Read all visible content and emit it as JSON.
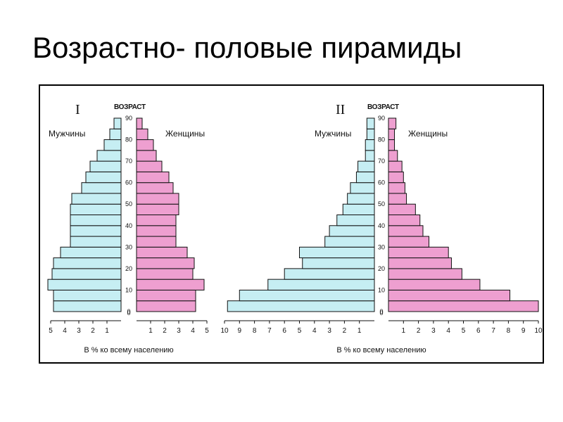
{
  "slide": {
    "title": "Возрастно- половые пирамиды"
  },
  "colors": {
    "male": "#c6eef3",
    "female": "#ee9fd0",
    "outline": "#111111"
  },
  "chart_data": [
    {
      "type": "bar",
      "orientation": "horizontal-pyramid",
      "panel_label": "I",
      "age_axis_label": "ВОЗРАСТ",
      "age_ticks": [
        "0",
        "10",
        "20",
        "30",
        "40",
        "50",
        "60",
        "70",
        "80",
        "90"
      ],
      "categories": [
        "0-4",
        "5-9",
        "10-14",
        "15-19",
        "20-24",
        "25-29",
        "30-34",
        "35-39",
        "40-44",
        "45-49",
        "50-54",
        "55-59",
        "60-64",
        "65-69",
        "70-74",
        "75-79",
        "80-84",
        "85-89"
      ],
      "series": [
        {
          "name": "Мужчины",
          "side": "left",
          "values": [
            4.8,
            4.8,
            5.2,
            4.9,
            4.8,
            4.3,
            3.6,
            3.6,
            3.6,
            3.6,
            3.5,
            2.8,
            2.5,
            2.2,
            1.7,
            1.2,
            0.8,
            0.5
          ]
        },
        {
          "name": "Женщины",
          "side": "right",
          "values": [
            4.2,
            4.2,
            4.8,
            4.0,
            4.1,
            3.6,
            2.8,
            2.8,
            2.8,
            3.0,
            3.0,
            2.6,
            2.3,
            1.8,
            1.4,
            1.2,
            0.8,
            0.4
          ]
        }
      ],
      "x_ticks_left": [
        "5",
        "4",
        "3",
        "2",
        "1"
      ],
      "x_ticks_right": [
        "1",
        "2",
        "3",
        "4",
        "5"
      ],
      "x_zero": "0",
      "xlim": [
        0,
        5
      ],
      "xlabel": "В % ко всему населению"
    },
    {
      "type": "bar",
      "orientation": "horizontal-pyramid",
      "panel_label": "II",
      "age_axis_label": "ВОЗРАСТ",
      "age_ticks": [
        "0",
        "10",
        "20",
        "30",
        "40",
        "50",
        "60",
        "70",
        "80",
        "90"
      ],
      "categories": [
        "0-4",
        "5-9",
        "10-14",
        "15-19",
        "20-24",
        "25-29",
        "30-34",
        "35-39",
        "40-44",
        "45-49",
        "50-54",
        "55-59",
        "60-64",
        "65-69",
        "70-74",
        "75-79",
        "80-84",
        "85-89"
      ],
      "series": [
        {
          "name": "Мужчины",
          "side": "left",
          "values": [
            9.8,
            9.0,
            7.1,
            6.0,
            4.8,
            5.0,
            3.3,
            3.0,
            2.5,
            2.1,
            1.8,
            1.6,
            1.2,
            1.1,
            0.6,
            0.6,
            0.5,
            0.5
          ]
        },
        {
          "name": "Женщины",
          "side": "right",
          "values": [
            10.0,
            8.1,
            6.1,
            4.9,
            4.2,
            4.0,
            2.7,
            2.3,
            2.1,
            1.8,
            1.2,
            1.1,
            1.0,
            0.9,
            0.6,
            0.4,
            0.4,
            0.5
          ]
        }
      ],
      "x_ticks_left": [
        "10",
        "9",
        "8",
        "7",
        "6",
        "5",
        "4",
        "3",
        "2",
        "1"
      ],
      "x_ticks_right": [
        "1",
        "2",
        "3",
        "4",
        "5",
        "6",
        "7",
        "8",
        "9",
        "10"
      ],
      "x_zero": "0",
      "xlim": [
        0,
        10
      ],
      "xlabel": "В % ко всему населению"
    }
  ]
}
